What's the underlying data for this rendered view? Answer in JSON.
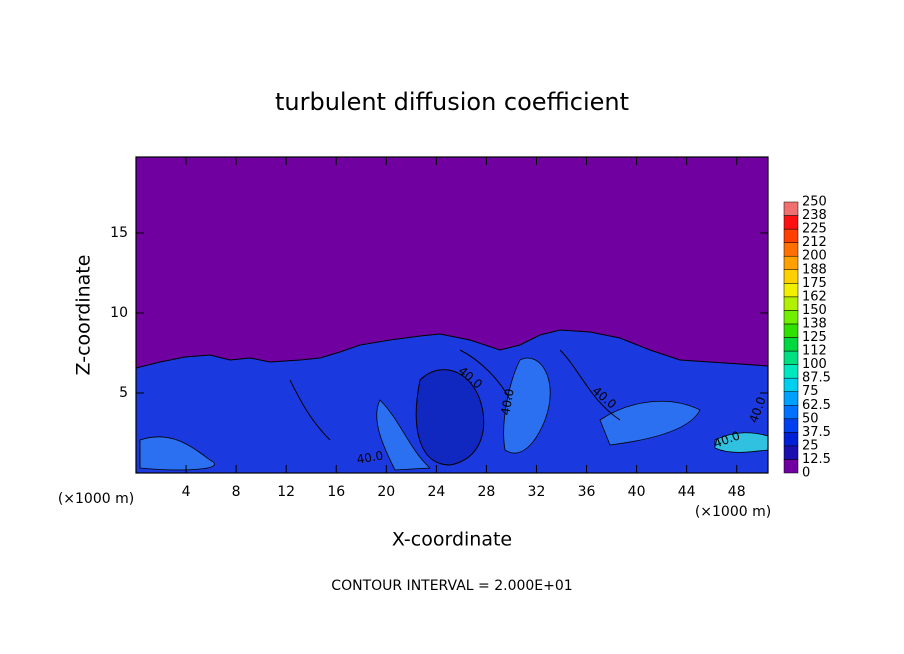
{
  "chart_data": {
    "type": "contour",
    "title": "turbulent diffusion coefficient",
    "xlabel": "X-coordinate",
    "ylabel": "Z-coordinate",
    "x_unit_left": "(×1000 m)",
    "x_unit_right": "(×1000 m)",
    "footnote": "CONTOUR INTERVAL = 2.000E+01",
    "xlim": [
      0,
      50.5
    ],
    "xticks": [
      4,
      8,
      12,
      16,
      20,
      24,
      28,
      32,
      36,
      40,
      44,
      48
    ],
    "ylim": [
      0,
      19.75
    ],
    "yticks": [
      5,
      10,
      15
    ],
    "contour_labels": [
      "40.0",
      "40.0",
      "40.0",
      "40.0",
      "40.0",
      "40.0"
    ],
    "colorbar": {
      "levels": [
        0,
        12.5,
        25,
        37.5,
        50,
        62.5,
        75,
        87.5,
        100,
        112,
        125,
        138,
        150,
        162,
        175,
        188,
        200,
        212,
        225,
        238,
        250
      ],
      "colors": [
        "#7000a0",
        "#1a10b0",
        "#0020d8",
        "#0040f0",
        "#0070ff",
        "#00a0ff",
        "#00d0f0",
        "#00e8c0",
        "#00e080",
        "#00d840",
        "#30e000",
        "#70f000",
        "#b0f000",
        "#f0f000",
        "#ffd000",
        "#ffa000",
        "#ff7000",
        "#ff4000",
        "#ff1010",
        "#f07070"
      ]
    }
  }
}
